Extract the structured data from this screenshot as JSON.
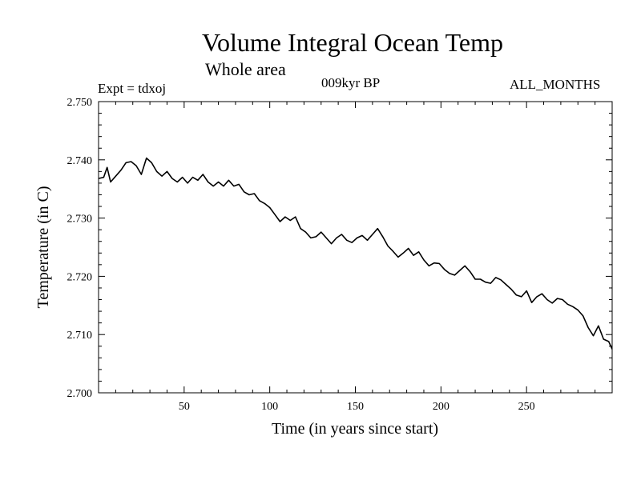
{
  "header": {
    "title": "Volume Integral Ocean Temp",
    "subtitle": "Whole area",
    "experiment": "Expt = tdxoj",
    "period": "009kyr BP",
    "months": "ALL_MONTHS"
  },
  "chart_data": {
    "type": "line",
    "title": "Volume Integral Ocean Temp",
    "subtitle": "Whole area",
    "xlabel": "Time (in years since start)",
    "ylabel": "Temperature (in C)",
    "xlim": [
      0,
      300
    ],
    "ylim": [
      2.7,
      2.75
    ],
    "xticks": [
      50,
      100,
      150,
      200,
      250
    ],
    "yticks": [
      "2.700",
      "2.710",
      "2.720",
      "2.730",
      "2.740",
      "2.750"
    ],
    "grid": false,
    "series": [
      {
        "x": [
          0,
          3,
          5,
          7,
          10,
          13,
          16,
          19,
          22,
          25,
          28,
          31,
          34,
          37,
          40,
          43,
          46,
          49,
          52,
          55,
          58,
          61,
          64,
          67,
          70,
          73,
          76,
          79,
          82,
          85,
          88,
          91,
          94,
          97,
          100,
          103,
          106,
          109,
          112,
          115,
          118,
          121,
          124,
          127,
          130,
          133,
          136,
          139,
          142,
          145,
          148,
          151,
          154,
          157,
          160,
          163,
          166,
          169,
          172,
          175,
          178,
          181,
          184,
          187,
          190,
          193,
          196,
          199,
          202,
          205,
          208,
          211,
          214,
          217,
          220,
          223,
          226,
          229,
          232,
          235,
          238,
          241,
          244,
          247,
          250,
          253,
          256,
          259,
          262,
          265,
          268,
          271,
          274,
          277,
          280,
          283,
          286,
          289,
          292,
          295,
          298,
          300
        ],
        "y": [
          2.7368,
          2.737,
          2.7387,
          2.7362,
          2.7372,
          2.7382,
          2.7395,
          2.7397,
          2.739,
          2.7375,
          2.7403,
          2.7395,
          2.738,
          2.7372,
          2.738,
          2.7368,
          2.7362,
          2.737,
          2.736,
          2.737,
          2.7365,
          2.7375,
          2.7362,
          2.7355,
          2.7362,
          2.7355,
          2.7365,
          2.7355,
          2.7358,
          2.7345,
          2.734,
          2.7342,
          2.733,
          2.7325,
          2.7318,
          2.7306,
          2.7294,
          2.7302,
          2.7296,
          2.7302,
          2.7282,
          2.7276,
          2.7266,
          2.7268,
          2.7276,
          2.7266,
          2.7256,
          2.7266,
          2.7272,
          2.7262,
          2.7258,
          2.7266,
          2.727,
          2.7262,
          2.7272,
          2.7282,
          2.7268,
          2.7252,
          2.7243,
          2.7233,
          2.724,
          2.7248,
          2.7236,
          2.7242,
          2.7228,
          2.7218,
          2.7223,
          2.7222,
          2.7212,
          2.7205,
          2.7202,
          2.721,
          2.7218,
          2.7208,
          2.7195,
          2.7195,
          2.719,
          2.7188,
          2.7198,
          2.7194,
          2.7186,
          2.7178,
          2.7168,
          2.7165,
          2.7175,
          2.7155,
          2.7165,
          2.717,
          2.716,
          2.7154,
          2.7162,
          2.716,
          2.7152,
          2.7148,
          2.7142,
          2.7132,
          2.7112,
          2.7098,
          2.7115,
          2.7092,
          2.7088,
          2.7075
        ]
      }
    ]
  }
}
